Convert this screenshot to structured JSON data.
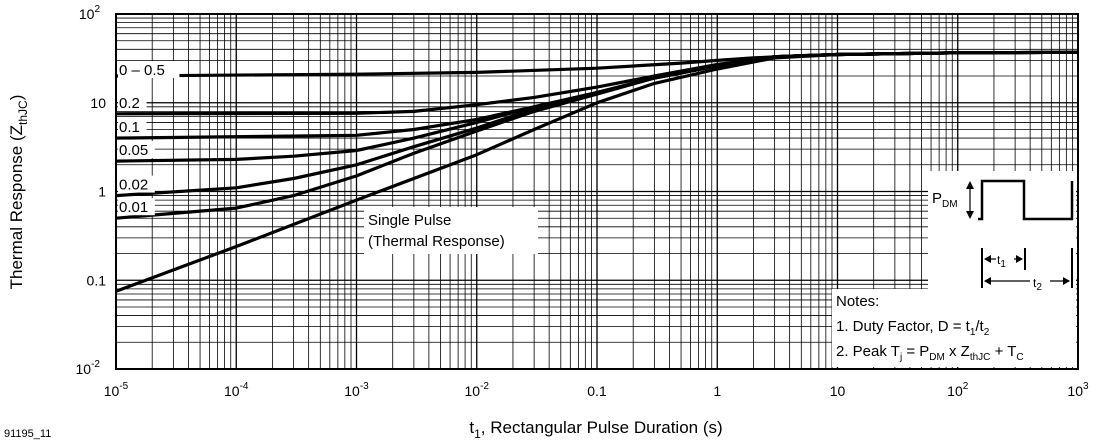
{
  "figure_id": "91195_11",
  "chart_data": {
    "type": "line",
    "xlabel": {
      "main": "t",
      "sub": "1",
      "rest": ", Rectangular Pulse Duration (s)"
    },
    "ylabel": {
      "main": "Thermal Response (Z",
      "sub": "thJC",
      "rest": ")"
    },
    "x_scale": "log",
    "y_scale": "log",
    "xlim": [
      1e-05,
      1000
    ],
    "ylim": [
      0.01,
      100
    ],
    "grid": true,
    "x_ticks": [
      {
        "value": 1e-05,
        "base": "10",
        "exp": "-5"
      },
      {
        "value": 0.0001,
        "base": "10",
        "exp": "-4"
      },
      {
        "value": 0.001,
        "base": "10",
        "exp": "-3"
      },
      {
        "value": 0.01,
        "base": "10",
        "exp": "-2"
      },
      {
        "value": 0.1,
        "base": "0.1",
        "exp": ""
      },
      {
        "value": 1,
        "base": "1",
        "exp": ""
      },
      {
        "value": 10,
        "base": "10",
        "exp": ""
      },
      {
        "value": 100,
        "base": "10",
        "exp": "2"
      },
      {
        "value": 1000,
        "base": "10",
        "exp": "3"
      }
    ],
    "y_ticks": [
      {
        "value": 100,
        "base": "10",
        "exp": "2"
      },
      {
        "value": 10,
        "base": "10",
        "exp": ""
      },
      {
        "value": 1,
        "base": "1",
        "exp": ""
      },
      {
        "value": 0.1,
        "base": "0.1",
        "exp": ""
      },
      {
        "value": 0.01,
        "base": "10",
        "exp": "-2"
      }
    ],
    "series": [
      {
        "name": "0 – 0.5",
        "x": [
          1e-05,
          0.001,
          0.01,
          0.1,
          0.5,
          1,
          2,
          5,
          10,
          100,
          1000
        ],
        "y": [
          20,
          21,
          22,
          24.5,
          28,
          30,
          32,
          34,
          35,
          36.5,
          37
        ]
      },
      {
        "name": "0.2",
        "x": [
          1e-05,
          0.001,
          0.003,
          0.01,
          0.03,
          0.1,
          0.3,
          1,
          3,
          10,
          100,
          1000
        ],
        "y": [
          7.5,
          7.6,
          8,
          9.5,
          11.5,
          15,
          20,
          27,
          33,
          35,
          36.5,
          37
        ]
      },
      {
        "name": "0.1",
        "x": [
          1e-05,
          0.001,
          0.003,
          0.01,
          0.03,
          0.1,
          0.3,
          1,
          3,
          10,
          100,
          1000
        ],
        "y": [
          4,
          4.3,
          5,
          6.5,
          9,
          13,
          19,
          26,
          33,
          35,
          36.5,
          37
        ]
      },
      {
        "name": "0.05",
        "x": [
          1e-05,
          0.0001,
          0.0003,
          0.001,
          0.003,
          0.01,
          0.03,
          0.1,
          0.3,
          1,
          3,
          10,
          100,
          1000
        ],
        "y": [
          2.2,
          2.3,
          2.5,
          2.9,
          4,
          6,
          9,
          13,
          19,
          26,
          33,
          35,
          36.5,
          37
        ]
      },
      {
        "name": "0.02",
        "x": [
          1e-05,
          0.0001,
          0.0003,
          0.001,
          0.003,
          0.01,
          0.03,
          0.1,
          0.3,
          1,
          3,
          10,
          100,
          1000
        ],
        "y": [
          0.9,
          1.1,
          1.4,
          2,
          3.2,
          5.2,
          8.5,
          13,
          19,
          26,
          33,
          35,
          36.5,
          37
        ]
      },
      {
        "name": "0.01",
        "x": [
          1e-05,
          0.0001,
          0.0003,
          0.001,
          0.003,
          0.01,
          0.03,
          0.1,
          0.3,
          1,
          3,
          10,
          100,
          1000
        ],
        "y": [
          0.5,
          0.65,
          0.9,
          1.5,
          2.7,
          4.8,
          8,
          12.5,
          19,
          26,
          33,
          35,
          36.5,
          37
        ]
      },
      {
        "name": "Single Pulse",
        "x": [
          1e-05,
          0.0001,
          0.001,
          0.01,
          0.03,
          0.1,
          0.3,
          1,
          3,
          10,
          100,
          1000
        ],
        "y": [
          0.075,
          0.24,
          0.8,
          2.6,
          5,
          10,
          16.5,
          24,
          32,
          35,
          36.5,
          37
        ]
      }
    ]
  },
  "annotations": {
    "single_pulse_line1": "Single Pulse",
    "single_pulse_line2": "(Thermal Response)",
    "pdm_main": "P",
    "pdm_sub": "DM",
    "t1_main": "t",
    "t1_sub": "1",
    "t2_main": "t",
    "t2_sub": "2"
  },
  "notes": {
    "title": "Notes:",
    "line1": {
      "text": "1.  Duty Factor, D = t",
      "sub1": "1",
      "mid": "/t",
      "sub2": "2"
    },
    "line2": {
      "t0": "2.  Peak T",
      "s0": "j",
      "t1": " = P",
      "s1": "DM",
      "t2": " x Z",
      "s2": "thJC",
      "t3": " + T",
      "s3": "C"
    }
  }
}
